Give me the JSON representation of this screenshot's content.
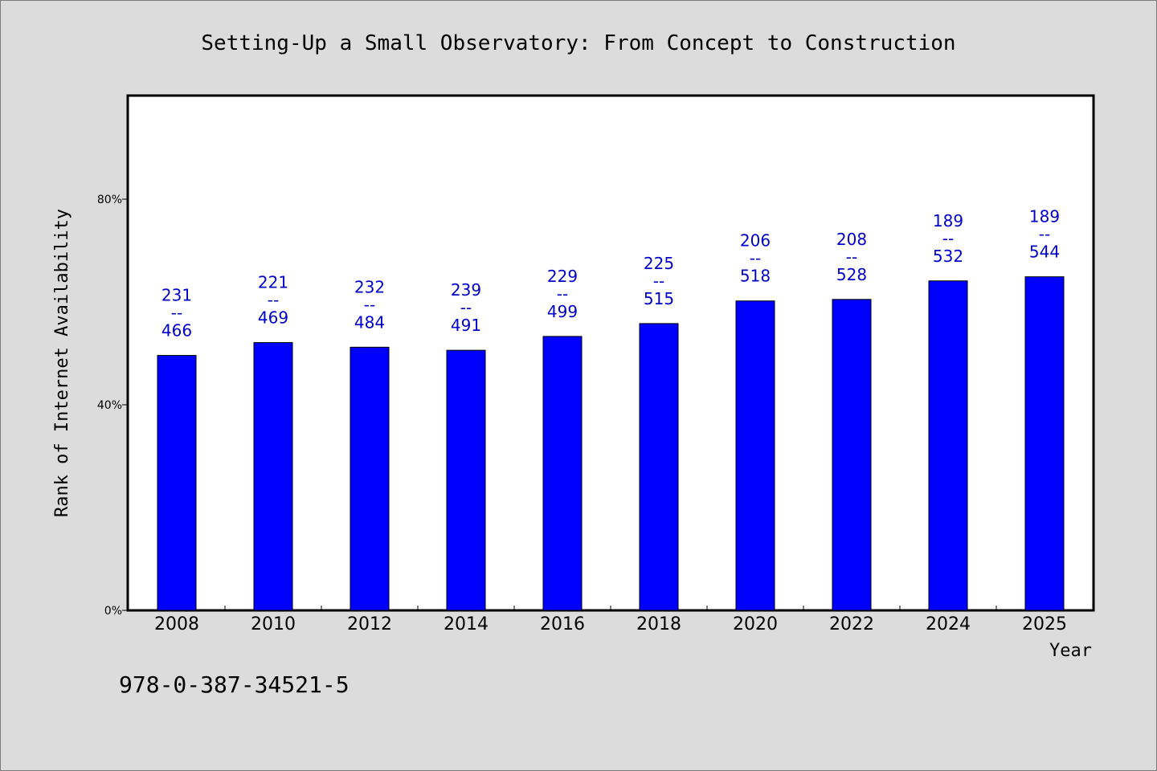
{
  "chart_data": {
    "type": "bar",
    "title": "Setting-Up a Small Observatory: From Concept to Construction",
    "xlabel": "Year",
    "ylabel": "Rank of Internet Availability",
    "categories": [
      "2008",
      "2010",
      "2012",
      "2014",
      "2016",
      "2018",
      "2020",
      "2022",
      "2024",
      "2025"
    ],
    "values": [
      49.6,
      52.1,
      51.2,
      50.6,
      53.3,
      55.8,
      60.2,
      60.5,
      64.1,
      64.9
    ],
    "labels_top": [
      "231",
      "221",
      "232",
      "239",
      "229",
      "225",
      "206",
      "208",
      "189",
      "189"
    ],
    "labels_sep": "--",
    "labels_bottom": [
      "466",
      "469",
      "484",
      "491",
      "499",
      "515",
      "518",
      "528",
      "532",
      "544"
    ],
    "ylim": [
      0,
      100
    ],
    "yticks": [
      0,
      40,
      80
    ],
    "ytick_labels": [
      "0%",
      "40%",
      "80%"
    ],
    "grid": false,
    "bar_color": "#0000ff",
    "label_color": "#0000cc"
  },
  "footer": {
    "isbn": "978-0-387-34521-5"
  }
}
